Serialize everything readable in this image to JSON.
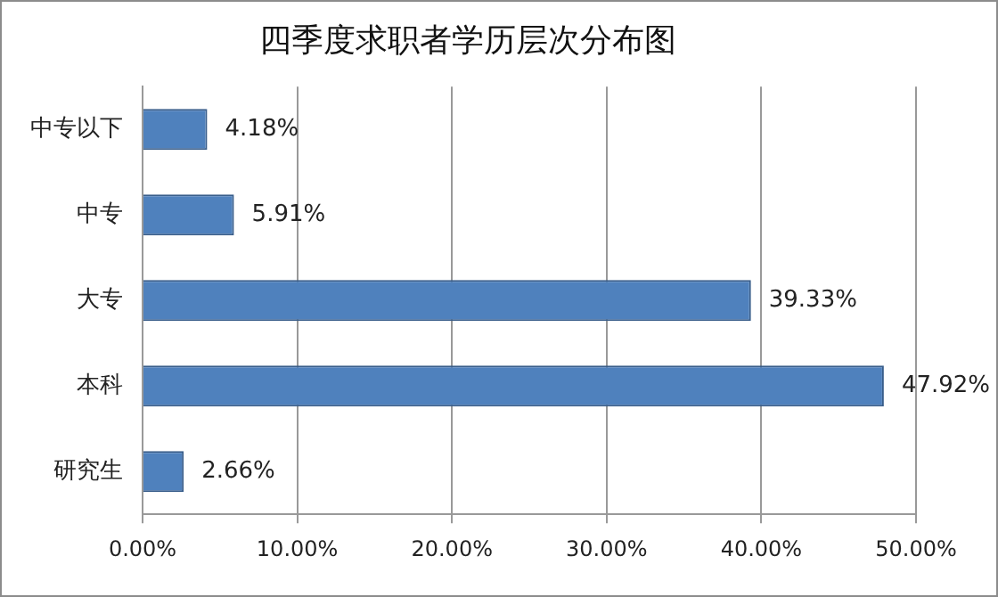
{
  "chart_data": {
    "type": "bar",
    "orientation": "horizontal",
    "title": "四季度求职者学历层次分布图",
    "categories": [
      "中专以下",
      "中专",
      "大专",
      "本科",
      "研究生"
    ],
    "values": [
      4.18,
      5.91,
      39.33,
      47.92,
      2.66
    ],
    "value_labels": [
      "4.18%",
      "5.91%",
      "39.33%",
      "47.92%",
      "2.66%"
    ],
    "color": "#4f81bd",
    "xlim": [
      0,
      50
    ],
    "xticks": [
      {
        "value": 0,
        "label": "0.00%"
      },
      {
        "value": 10,
        "label": "10.00%"
      },
      {
        "value": 20,
        "label": "20.00%"
      },
      {
        "value": 30,
        "label": "30.00%"
      },
      {
        "value": 40,
        "label": "40.00%"
      },
      {
        "value": 50,
        "label": "50.00%"
      }
    ],
    "grid": "x",
    "legend": false
  }
}
